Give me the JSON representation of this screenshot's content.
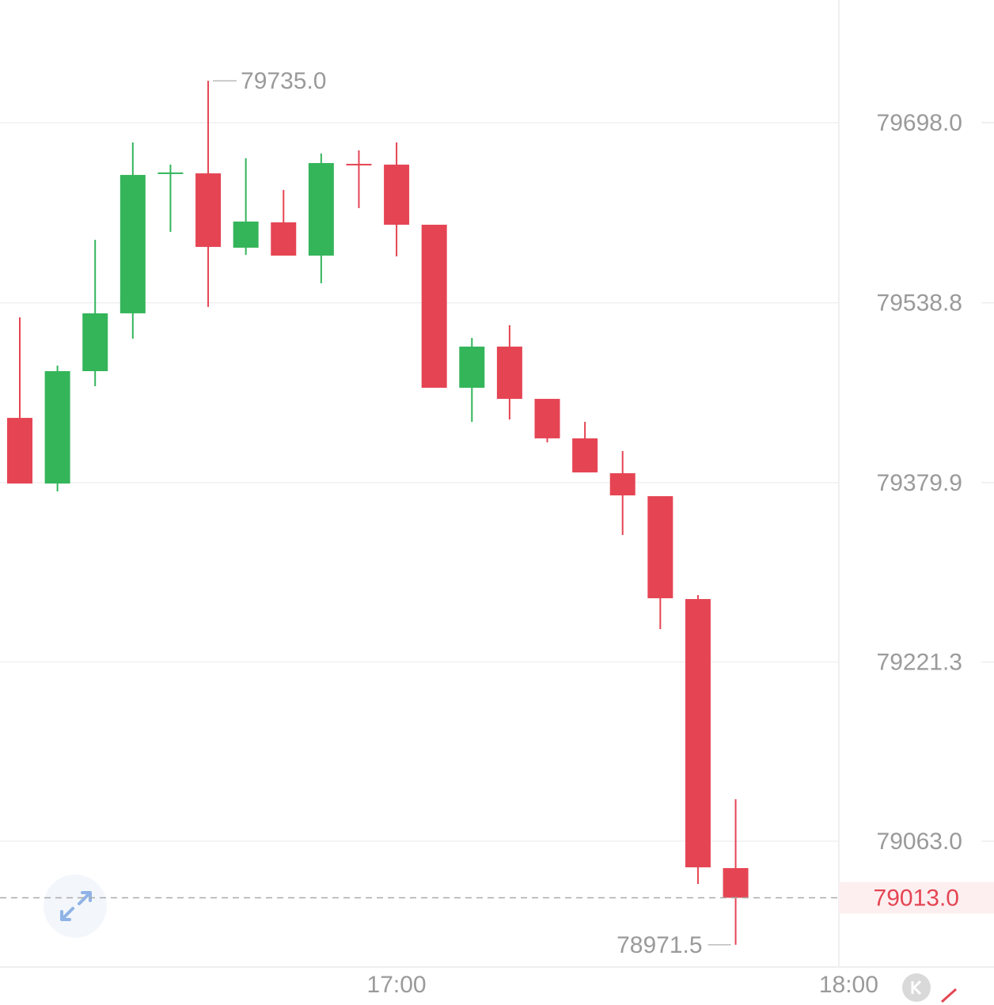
{
  "chart_data": {
    "type": "candlestick",
    "categories": [
      null,
      null,
      null,
      null,
      null,
      null,
      null,
      null,
      null,
      null,
      null,
      null,
      null,
      null,
      null,
      null,
      null,
      null,
      null,
      null
    ],
    "open": [
      79437.1,
      79379.1,
      79478.4,
      79529.5,
      79653.9,
      79653.2,
      79587.5,
      79609.9,
      79580.5,
      79661.6,
      79660.9,
      79607.8,
      79463.7,
      79500.1,
      79453.9,
      79419.0,
      79388.2,
      79367.9,
      79277.0,
      79039.2
    ],
    "high": [
      79526.0,
      79483.3,
      79594.5,
      79680.5,
      79660.9,
      79735.0,
      79666.5,
      79638.6,
      79670.7,
      79673.5,
      79680.5,
      79607.8,
      79507.8,
      79519.0,
      79453.9,
      79433.6,
      79407.8,
      79367.9,
      79280.5,
      79100.1
    ],
    "low": [
      79379.1,
      79372.1,
      79465.1,
      79507.1,
      79601.5,
      79535.1,
      79581.2,
      79580.5,
      79556.0,
      79622.5,
      79579.8,
      79463.7,
      79433.6,
      79435.7,
      79415.5,
      79388.9,
      79333.6,
      79250.4,
      79025.2,
      78971.5
    ],
    "close": [
      79379.1,
      79478.4,
      79529.5,
      79651.8,
      79654.0,
      79588.2,
      79610.6,
      79580.5,
      79662.3,
      79661.0,
      79607.8,
      79463.7,
      79500.1,
      79453.9,
      79419.0,
      79388.9,
      79368.6,
      79277.7,
      79039.9,
      79013.0
    ],
    "up_color": "#34b55a",
    "down_color": "#e54553",
    "xlim": [
      -0.525,
      21.74
    ],
    "xticks": [
      {
        "value": 10,
        "label": "17:00"
      },
      {
        "value": 22,
        "label": "18:00"
      }
    ],
    "ylim": [
      78951.8,
      79806.4
    ],
    "yticks": [
      {
        "value": 79063.0,
        "label": "79063.0"
      },
      {
        "value": 79221.3,
        "label": "79221.3"
      },
      {
        "value": 79379.9,
        "label": "79379.9"
      },
      {
        "value": 79538.8,
        "label": "79538.8"
      },
      {
        "value": 79698.0,
        "label": "79698.0"
      }
    ],
    "grid": true,
    "max_annotation": {
      "value": 79735.0,
      "label": "79735.0",
      "index": 5
    },
    "min_annotation": {
      "value": 78971.5,
      "label": "78971.5",
      "index": 19
    },
    "last_price": {
      "value": 79013.0,
      "label": "79013.0"
    }
  }
}
